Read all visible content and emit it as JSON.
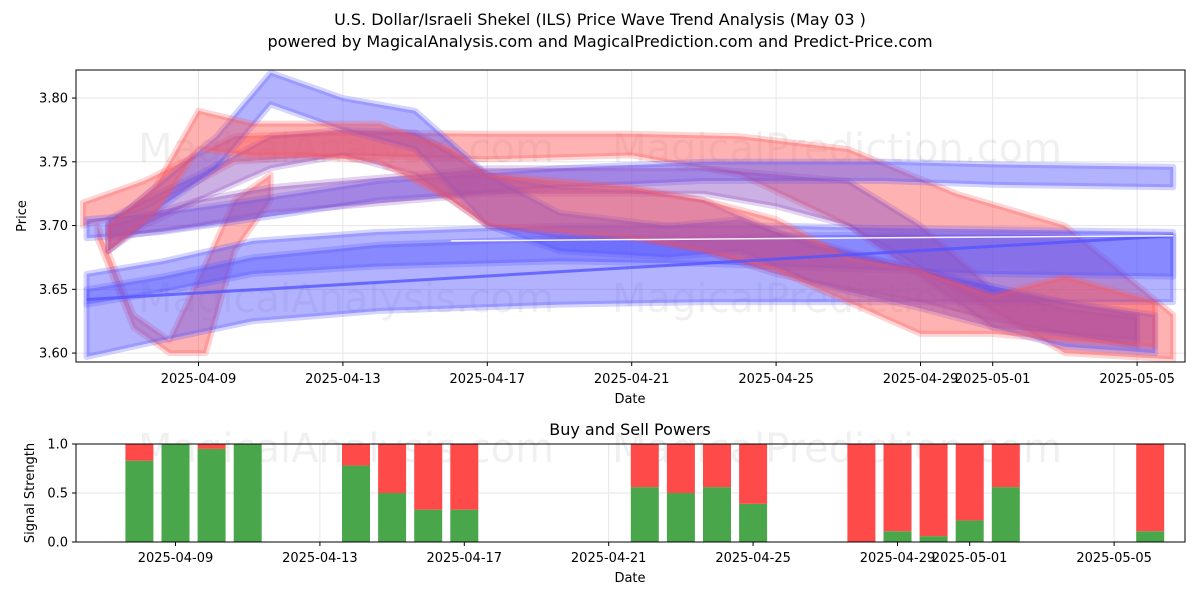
{
  "title_line1": "U.S. Dollar/Israeli Shekel (ILS) Price Wave Trend Analysis (May 03 )",
  "title_line2": "powered by MagicalAnalysis.com and MagicalPrediction.com and Predict-Price.com",
  "watermarks": [
    "MagicalAnalysis.com",
    "MagicalPrediction.com"
  ],
  "colors": {
    "buy": "#4aa64a",
    "sell": "#ff4a4a",
    "red_band": "#ff5555",
    "blue_band": "#5555ff",
    "purple_band": "#9050c0"
  },
  "chart_data": [
    {
      "type": "area",
      "name": "price-wave-chart",
      "title": "",
      "xlabel": "Date",
      "ylabel": "Price",
      "x_ticks": [
        "2025-04-09",
        "2025-04-13",
        "2025-04-17",
        "2025-04-21",
        "2025-04-25",
        "2025-04-29",
        "2025-05-01",
        "2025-05-05"
      ],
      "y_ticks": [
        "3.60",
        "3.65",
        "3.70",
        "3.75",
        "3.80"
      ],
      "ylim": [
        3.593,
        3.822
      ],
      "xlim_days": [
        -3.3,
        27.4
      ],
      "x_origin_date": "2025-04-09",
      "series": [
        {
          "name": "red-wave-long-upper",
          "color": "red",
          "x": [
            -3.2,
            -1.5,
            1,
            4,
            8,
            12,
            15,
            18,
            21,
            24,
            27
          ],
          "y": [
            3.718,
            3.735,
            3.77,
            3.773,
            3.772,
            3.772,
            3.77,
            3.76,
            3.725,
            3.7,
            3.63
          ],
          "y_low": [
            3.7,
            3.712,
            3.75,
            3.755,
            3.752,
            3.755,
            3.74,
            3.7,
            3.65,
            3.6,
            3.595
          ]
        },
        {
          "name": "red-wave-deep-dip",
          "color": "red",
          "x": [
            -2.8,
            -1.8,
            -0.8,
            0.2,
            1,
            2
          ],
          "y": [
            3.7,
            3.63,
            3.61,
            3.67,
            3.72,
            3.74
          ],
          "y_low": [
            3.69,
            3.62,
            3.6,
            3.6,
            3.68,
            3.72
          ]
        },
        {
          "name": "blue-wave-long-upper",
          "color": "blue",
          "x": [
            -3.1,
            -1,
            1.5,
            5,
            10,
            14,
            16,
            19,
            22,
            27
          ],
          "y": [
            3.705,
            3.71,
            3.72,
            3.735,
            3.745,
            3.75,
            3.75,
            3.75,
            3.748,
            3.746
          ],
          "y_low": [
            3.69,
            3.695,
            3.705,
            3.72,
            3.73,
            3.735,
            3.735,
            3.735,
            3.732,
            3.73
          ]
        },
        {
          "name": "blue-wave-long-lower",
          "color": "blue",
          "x": [
            -3.1,
            -1,
            1.5,
            5,
            10,
            14,
            16,
            19,
            22,
            27
          ],
          "y": [
            3.65,
            3.66,
            3.675,
            3.685,
            3.69,
            3.69,
            3.692,
            3.693,
            3.693,
            3.692
          ],
          "y_low": [
            3.597,
            3.61,
            3.625,
            3.633,
            3.638,
            3.64,
            3.64,
            3.64,
            3.64,
            3.64
          ]
        },
        {
          "name": "blue-wave-mid",
          "color": "blue",
          "x": [
            -3.1,
            -1,
            1.5,
            5,
            10,
            14,
            16,
            19,
            22,
            27
          ],
          "y": [
            3.662,
            3.672,
            3.688,
            3.695,
            3.7,
            3.7,
            3.7,
            3.698,
            3.697,
            3.695
          ],
          "y_low": [
            3.638,
            3.648,
            3.662,
            3.668,
            3.672,
            3.67,
            3.668,
            3.665,
            3.662,
            3.66
          ]
        },
        {
          "name": "purple-wave-main",
          "color": "purple",
          "x": [
            -2.5,
            -1.5,
            0,
            2,
            4,
            6,
            8,
            10,
            12,
            14,
            16,
            18,
            20,
            22,
            24,
            26
          ],
          "y": [
            3.705,
            3.72,
            3.74,
            3.77,
            3.775,
            3.773,
            3.74,
            3.73,
            3.728,
            3.72,
            3.695,
            3.68,
            3.665,
            3.65,
            3.635,
            3.628
          ],
          "y_low": [
            3.68,
            3.7,
            3.72,
            3.745,
            3.755,
            3.74,
            3.7,
            3.69,
            3.69,
            3.68,
            3.662,
            3.65,
            3.64,
            3.625,
            3.615,
            3.605
          ]
        },
        {
          "name": "purple-wave-wide",
          "color": "purple",
          "x": [
            -2.5,
            0,
            2,
            4,
            6,
            8,
            10,
            12,
            14,
            16,
            18,
            20,
            22,
            24,
            26
          ],
          "y": [
            3.7,
            3.72,
            3.73,
            3.735,
            3.74,
            3.745,
            3.745,
            3.745,
            3.745,
            3.74,
            3.735,
            3.7,
            3.65,
            3.64,
            3.63
          ],
          "y_low": [
            3.69,
            3.7,
            3.71,
            3.715,
            3.72,
            3.725,
            3.725,
            3.725,
            3.725,
            3.715,
            3.7,
            3.66,
            3.62,
            3.615,
            3.61
          ]
        },
        {
          "name": "blue-wave-peak",
          "color": "blue",
          "x": [
            -2.5,
            -1,
            0.5,
            2,
            4,
            6,
            8,
            10,
            13,
            15,
            17,
            20,
            24,
            26.5
          ],
          "y": [
            3.7,
            3.735,
            3.77,
            3.82,
            3.8,
            3.79,
            3.74,
            3.71,
            3.7,
            3.705,
            3.685,
            3.665,
            3.64,
            3.63
          ],
          "y_low": [
            3.68,
            3.715,
            3.745,
            3.795,
            3.775,
            3.76,
            3.7,
            3.68,
            3.675,
            3.68,
            3.655,
            3.635,
            3.605,
            3.6
          ]
        },
        {
          "name": "red-wave-short",
          "color": "red",
          "x": [
            -2.5,
            -1.2,
            0,
            1.5,
            3,
            5,
            7,
            8,
            10,
            12,
            14,
            16,
            18,
            20,
            22,
            24,
            26.5
          ],
          "y": [
            3.7,
            3.73,
            3.79,
            3.78,
            3.78,
            3.78,
            3.76,
            3.74,
            3.735,
            3.73,
            3.72,
            3.705,
            3.675,
            3.665,
            3.645,
            3.66,
            3.64
          ],
          "y_low": [
            3.68,
            3.71,
            3.76,
            3.755,
            3.755,
            3.75,
            3.72,
            3.7,
            3.695,
            3.69,
            3.68,
            3.665,
            3.64,
            3.615,
            3.615,
            3.61,
            3.605
          ]
        }
      ],
      "mean_lines": [
        {
          "name": "blue-mean-line",
          "color": "blue",
          "x": [
            -3.1,
            27
          ],
          "y": [
            3.642,
            3.692
          ]
        },
        {
          "name": "white-mean-line",
          "color": "white",
          "x": [
            7,
            27
          ],
          "y": [
            3.688,
            3.692
          ]
        }
      ]
    },
    {
      "type": "bar",
      "name": "buy-sell-powers-chart",
      "title": "Buy and Sell Powers",
      "xlabel": "Date",
      "ylabel": "Signal Strength",
      "x_ticks": [
        "2025-04-09",
        "2025-04-13",
        "2025-04-17",
        "2025-04-21",
        "2025-04-25",
        "2025-04-29",
        "2025-05-01",
        "2025-05-05"
      ],
      "y_ticks": [
        "0.0",
        "0.5",
        "1.0"
      ],
      "ylim": [
        0,
        1
      ],
      "days": [
        -1,
        0,
        1,
        2,
        5,
        6,
        7,
        8,
        13,
        14,
        15,
        16,
        19,
        20,
        21,
        22,
        23,
        24,
        27
      ],
      "buy": [
        0.83,
        1.0,
        0.95,
        1.0,
        0.78,
        0.5,
        0.33,
        0.33,
        0.56,
        0.5,
        0.56,
        0.39,
        0.0,
        0.11,
        0.06,
        0.22,
        0.56,
        0.0,
        0.11
      ],
      "sell": [
        0.17,
        0.0,
        0.05,
        0.0,
        0.22,
        0.5,
        0.67,
        0.67,
        0.44,
        0.5,
        0.44,
        0.61,
        1.0,
        0.89,
        0.94,
        0.78,
        0.44,
        0.0,
        0.89
      ]
    }
  ]
}
